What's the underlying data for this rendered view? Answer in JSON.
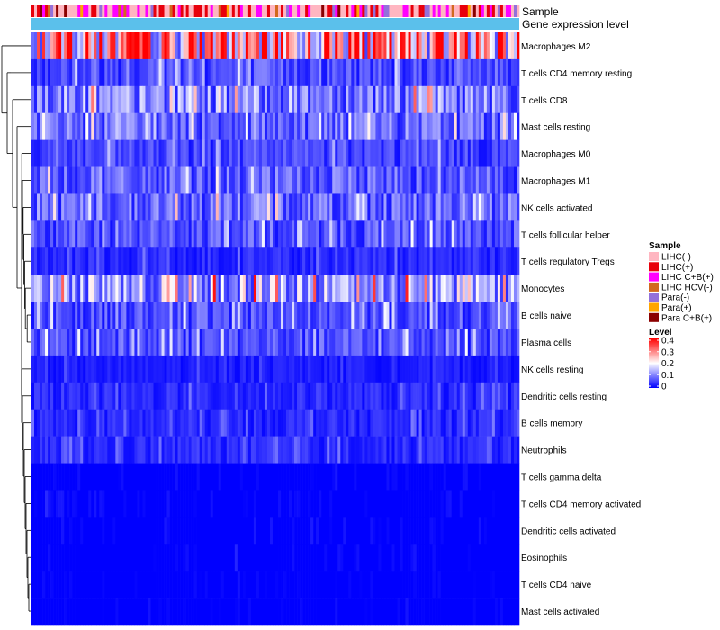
{
  "chart_data": {
    "type": "heatmap",
    "annotation_tracks": [
      "Sample",
      "Gene expression level"
    ],
    "rows": [
      "Macrophages M2",
      "T cells CD4 memory resting",
      "T cells CD8",
      "Mast cells resting",
      "Macrophages M0",
      "Macrophages M1",
      "NK cells activated",
      "T cells follicular helper",
      "T cells regulatory  Tregs",
      "Monocytes",
      "B cells naive",
      "Plasma cells",
      "NK cells resting",
      "Dendritic cells resting",
      "B cells memory",
      "Neutrophils",
      "T cells gamma delta",
      "T cells CD4 memory activated",
      "Dendritic cells activated",
      "Eosinophils",
      "T cells CD4 naive",
      "Mast cells activated"
    ],
    "row_mean_levels": [
      0.24,
      0.06,
      0.1,
      0.08,
      0.05,
      0.07,
      0.08,
      0.06,
      0.03,
      0.12,
      0.06,
      0.06,
      0.02,
      0.03,
      0.03,
      0.03,
      0.01,
      0.01,
      0.01,
      0.01,
      0.005,
      0.005
    ],
    "sample_legend": {
      "title": "Sample",
      "items": [
        {
          "label": "LIHC(-)",
          "color": "#FFB6C1"
        },
        {
          "label": "LIHC(+)",
          "color": "#E8000B"
        },
        {
          "label": "LIHC C+B(+)",
          "color": "#FF00FF"
        },
        {
          "label": "LIHC HCV(-)",
          "color": "#D2691E"
        },
        {
          "label": "Para(-)",
          "color": "#9370DB"
        },
        {
          "label": "Para(+)",
          "color": "#FFA500"
        },
        {
          "label": "Para C+B(+)",
          "color": "#8B0000"
        }
      ]
    },
    "level_legend": {
      "title": "Level",
      "ticks": [
        "0.4",
        "0.3",
        "0.2",
        "0.1",
        "0"
      ],
      "range": [
        0,
        0.4
      ],
      "colors": [
        "#0000FF",
        "#FFFFFF",
        "#FF0000"
      ]
    },
    "expression_track_color": "#5BC0EB"
  }
}
